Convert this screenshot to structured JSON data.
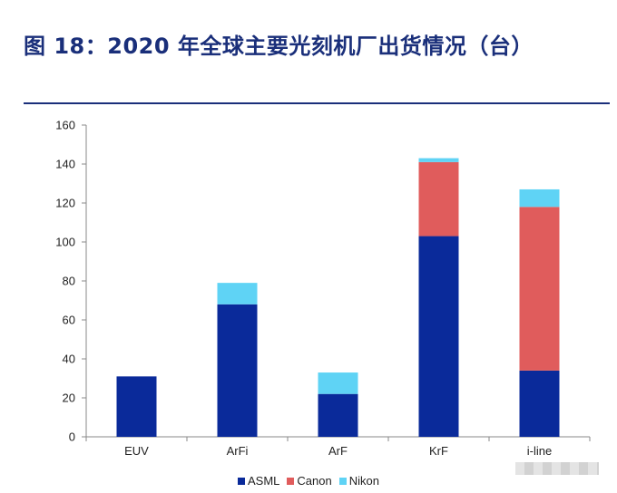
{
  "title": "图 18：2020 年全球主要光刻机厂出货情况（台）",
  "colors": {
    "title": "#1a2f7a",
    "ASML": "#0a2a9a",
    "Canon": "#e05c5c",
    "Nikon": "#5fd3f5"
  },
  "chart_data": {
    "type": "bar",
    "stacked": true,
    "categories": [
      "EUV",
      "ArFi",
      "ArF",
      "KrF",
      "i-line"
    ],
    "series": [
      {
        "name": "ASML",
        "values": [
          31,
          68,
          22,
          103,
          34
        ]
      },
      {
        "name": "Canon",
        "values": [
          0,
          0,
          0,
          38,
          84
        ]
      },
      {
        "name": "Nikon",
        "values": [
          0,
          11,
          11,
          2,
          9
        ]
      }
    ],
    "ylim": [
      0,
      160
    ],
    "yticks": [
      0,
      20,
      40,
      60,
      80,
      100,
      120,
      140,
      160
    ],
    "xlabel": "",
    "ylabel": "",
    "grid": false,
    "legend_position": "bottom"
  }
}
